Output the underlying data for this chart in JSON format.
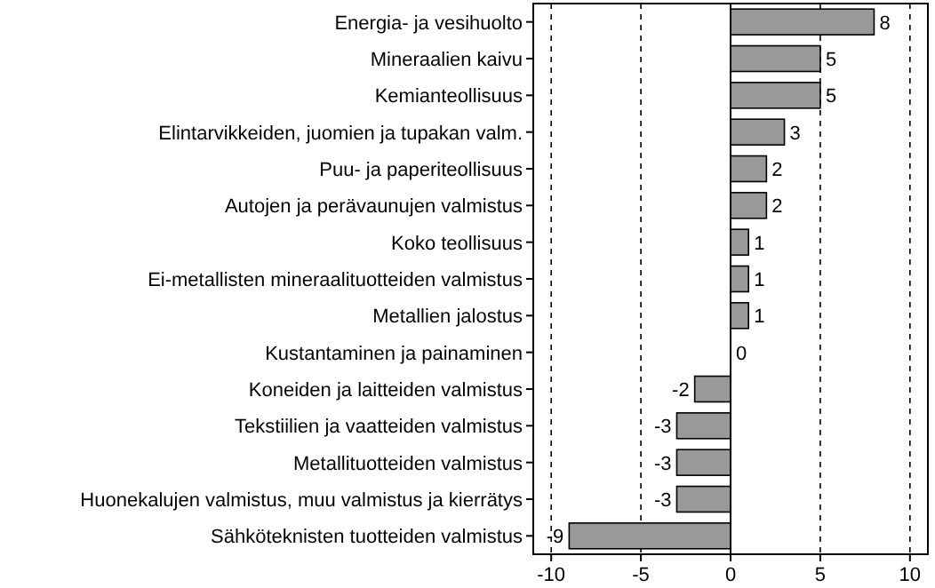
{
  "chart_data": {
    "type": "bar",
    "orientation": "horizontal",
    "categories": [
      "Energia- ja vesihuolto",
      "Mineraalien kaivu",
      "Kemianteollisuus",
      "Elintarvikkeiden, juomien ja tupakan valm.",
      "Puu- ja paperiteollisuus",
      "Autojen ja perävaunujen valmistus",
      "Koko teollisuus",
      "Ei-metallisten mineraalituotteiden valmistus",
      "Metallien jalostus",
      "Kustantaminen ja painaminen",
      "Koneiden ja laitteiden valmistus",
      "Tekstiilien ja vaatteiden valmistus",
      "Metallituotteiden valmistus",
      "Huonekalujen valmistus, muu valmistus ja kierrätys",
      "Sähköteknisten tuotteiden valmistus"
    ],
    "values": [
      8,
      5,
      5,
      3,
      2,
      2,
      1,
      1,
      1,
      0,
      -2,
      -3,
      -3,
      -3,
      -9
    ],
    "color": "#999999",
    "xlim": [
      -11,
      11
    ],
    "xticks": [
      -10,
      -5,
      0,
      5,
      10
    ],
    "grid": "x",
    "data_labels": true
  }
}
